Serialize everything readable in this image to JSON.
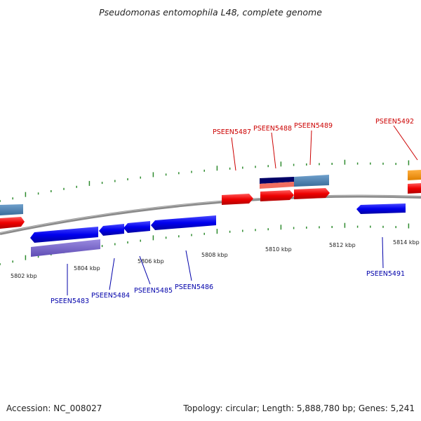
{
  "title": "Pseudomonas entomophila L48, complete genome",
  "footer": {
    "accession": "Accession: NC_008027",
    "topology": "Topology: circular; Length: 5,888,780 bp; Genes: 5,241"
  },
  "colors": {
    "backbone": "#888888",
    "tick": "#2e8b2e",
    "forward_gene": "#ff0000",
    "reverse_gene": "#0000ff",
    "forward_label": "#cc0000",
    "reverse_label": "#0000aa",
    "steelblue": "#4a7fb0",
    "violet": "#7b68cc",
    "navy": "#000066",
    "salmon": "#f07060",
    "orange": "#f39000"
  },
  "scale_labels": [
    "5802 kbp",
    "5804 kbp",
    "5806 kbp",
    "5808 kbp",
    "5810 kbp",
    "5812 kbp",
    "5814 kbp"
  ],
  "gene_labels": {
    "forward": [
      "PSEEN5487",
      "PSEEN5488",
      "PSEEN5489",
      "PSEEN5492"
    ],
    "reverse": [
      "PSEEN5483",
      "PSEEN5484",
      "PSEEN5485",
      "PSEEN5486",
      "PSEEN5491"
    ]
  }
}
